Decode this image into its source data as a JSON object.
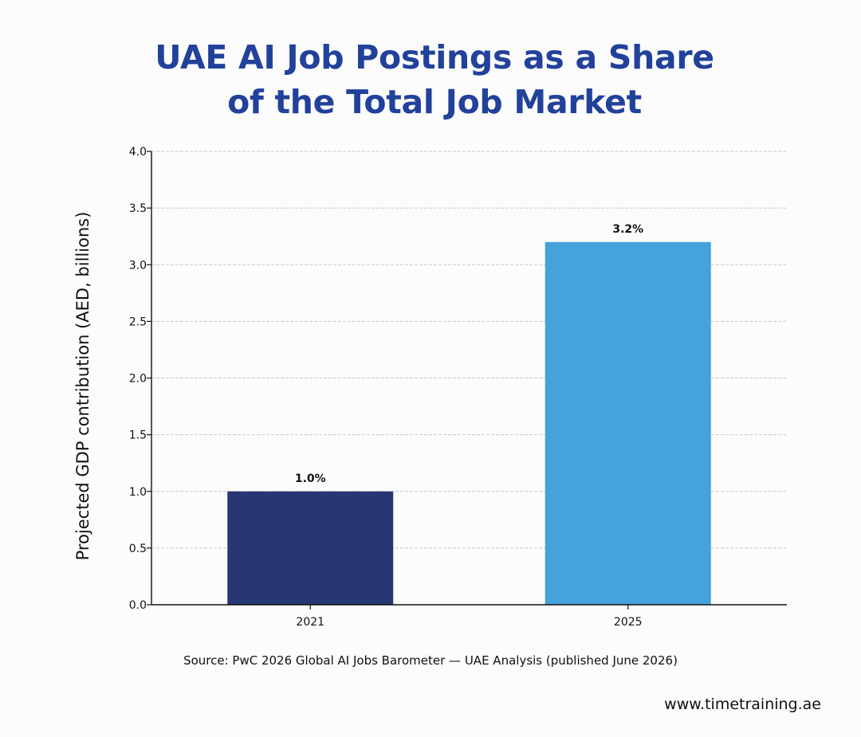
{
  "title_lines": [
    "UAE AI Job Postings as a Share",
    "of the Total Job Market"
  ],
  "source": "Source: PwC 2026 Global AI Jobs Barometer — UAE Analysis (published June 2026)",
  "website": "www.timetraining.ae",
  "colors": {
    "title": "#22419a",
    "bar_2021": "#263773",
    "bar_2025": "#45a2da",
    "grid": "#c8c8c8",
    "axis": "#111111"
  },
  "chart_data": {
    "type": "bar",
    "title": "UAE AI Job Postings as a Share of the Total Job Market",
    "categories": [
      "2021",
      "2025"
    ],
    "values": [
      1.0,
      3.2
    ],
    "data_labels": [
      "1.0%",
      "3.2%"
    ],
    "xlabel": "",
    "ylabel": "Projected GDP contribution (AED, billions)",
    "ylim": [
      0,
      4
    ],
    "yticks": [
      "0.0",
      "0.5",
      "1.0",
      "1.5",
      "2.0",
      "2.5",
      "3.0",
      "3.5",
      "4.0"
    ],
    "grid": true,
    "legend": false
  }
}
